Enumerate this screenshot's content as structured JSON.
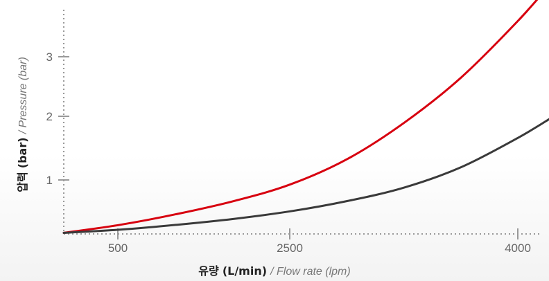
{
  "chart_data": {
    "type": "line",
    "xlabel_kr": "유량",
    "xlabel_unit": "(L/min)",
    "xlabel_en": "/ Flow rate (lpm)",
    "ylabel_kr": "압력",
    "ylabel_unit": "(bar)",
    "ylabel_en": "/ Pressure (bar)",
    "x_ticks": [
      "500",
      "2500",
      "4000"
    ],
    "y_ticks": [
      "1",
      "2",
      "3"
    ],
    "xlim": [
      0,
      4300
    ],
    "ylim": [
      0,
      3.5
    ],
    "grid": false,
    "series": [
      {
        "color": "#d7000f",
        "x": [
          0,
          500,
          1000,
          1500,
          2000,
          2500,
          3000,
          3500,
          4000,
          4300
        ],
        "y": [
          0.02,
          0.17,
          0.37,
          0.61,
          0.92,
          1.33,
          1.9,
          2.65,
          3.6,
          4.25
        ]
      },
      {
        "color": "#3a3a3a",
        "x": [
          0,
          500,
          1000,
          1500,
          2000,
          2500,
          3000,
          3500,
          4000,
          4300
        ],
        "y": [
          0.02,
          0.08,
          0.17,
          0.28,
          0.42,
          0.61,
          0.86,
          1.2,
          1.66,
          1.98
        ]
      }
    ]
  }
}
